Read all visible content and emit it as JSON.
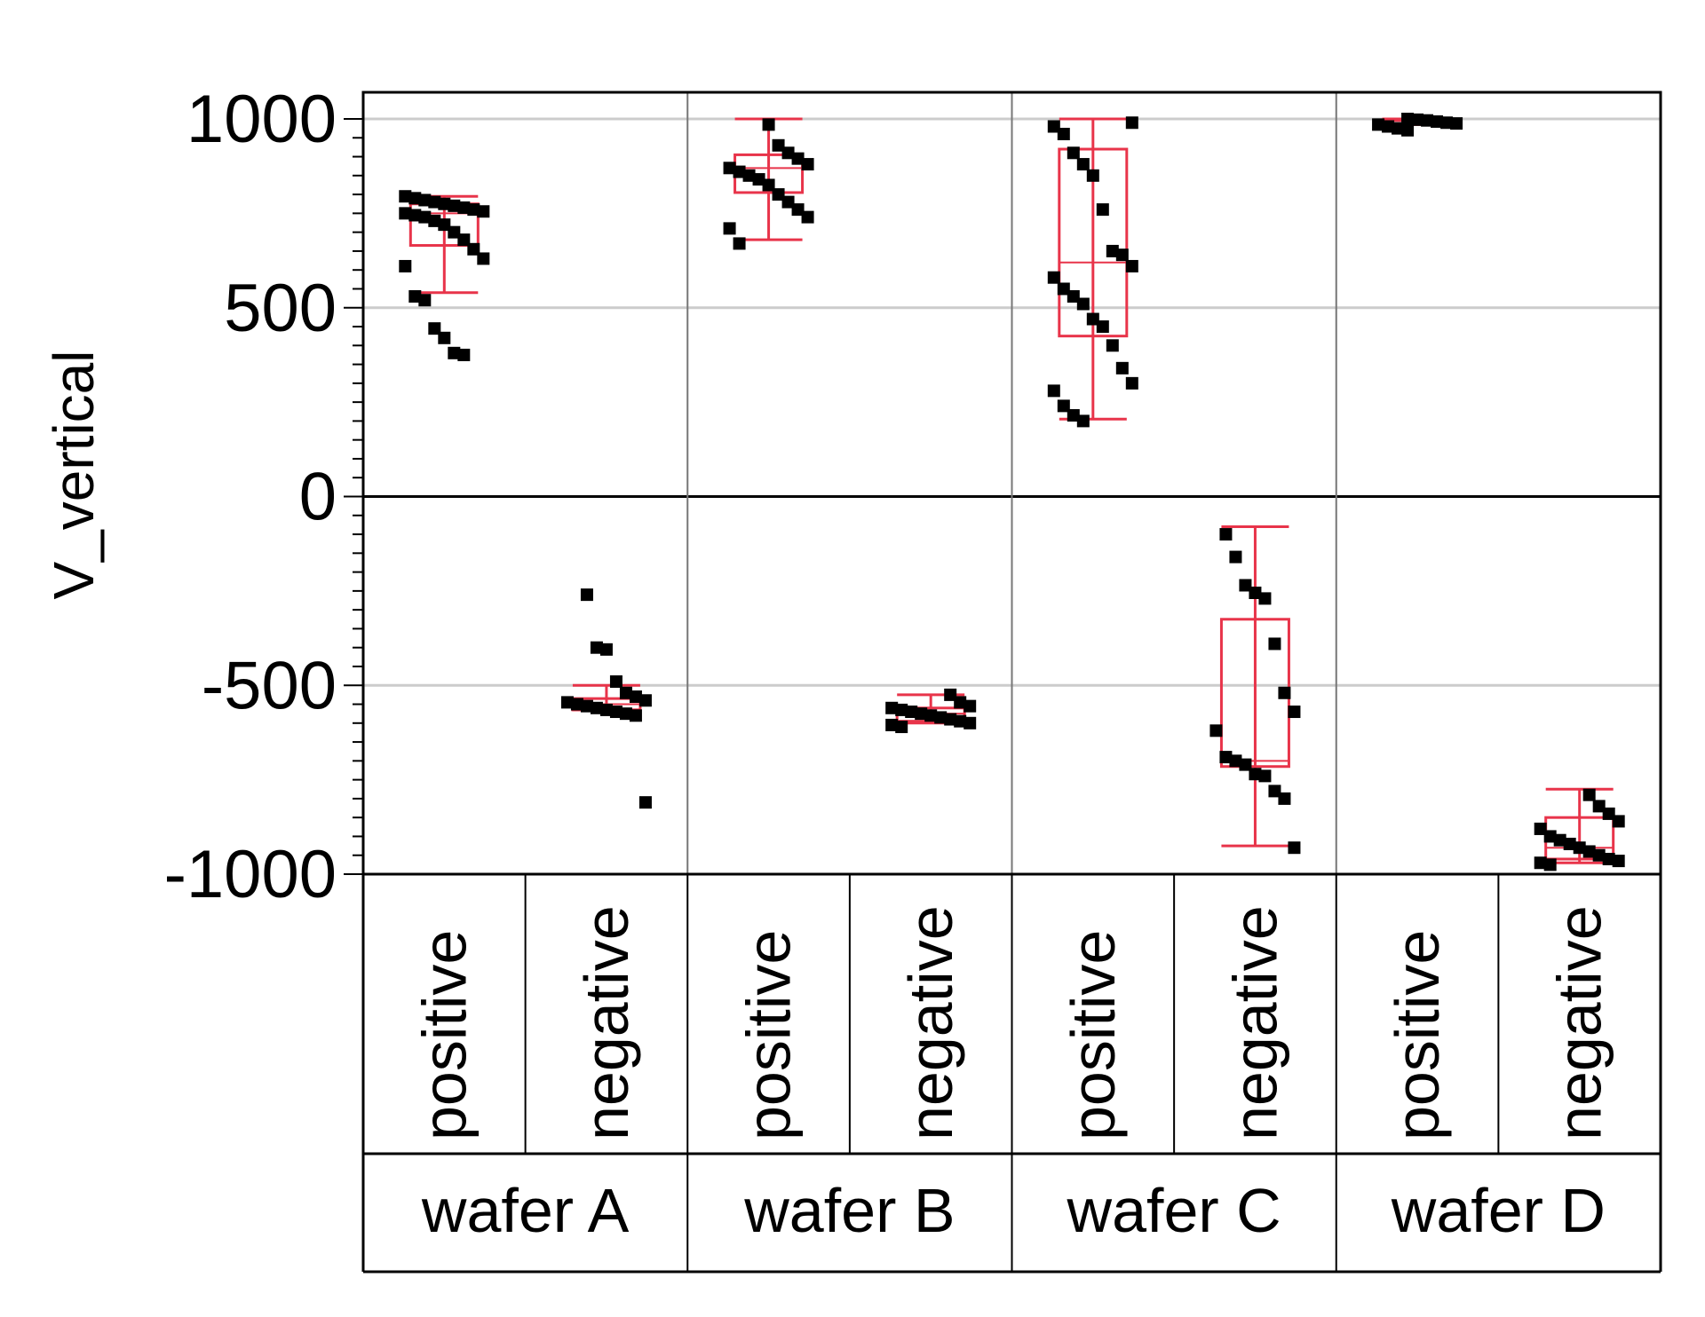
{
  "chart_data": {
    "type": "box",
    "ylabel": "V_vertical",
    "ylim": [
      -1000,
      1000
    ],
    "yticks": [
      1000,
      500,
      0,
      -500,
      -1000
    ],
    "grid": true,
    "groups": [
      "wafer A",
      "wafer B",
      "wafer C",
      "wafer D"
    ],
    "categories": [
      "positive",
      "negative"
    ],
    "colors": {
      "box": "#e8344a",
      "point": "#000000",
      "grid": "#cccccc",
      "frame": "#000000"
    },
    "boxes": [
      {
        "group": "wafer A",
        "category": "positive",
        "whisker_low": 540,
        "q1": 665,
        "median": 750,
        "q3": 775,
        "whisker_high": 795,
        "points": [
          795,
          790,
          785,
          780,
          775,
          770,
          765,
          760,
          755,
          750,
          745,
          740,
          730,
          720,
          700,
          680,
          655,
          630,
          610,
          530,
          520,
          445,
          420,
          380,
          375
        ]
      },
      {
        "group": "wafer A",
        "category": "negative",
        "whisker_low": -565,
        "q1": -565,
        "median": -550,
        "q3": -535,
        "whisker_high": -500,
        "points": [
          -260,
          -400,
          -405,
          -490,
          -520,
          -530,
          -540,
          -545,
          -550,
          -555,
          -560,
          -565,
          -570,
          -575,
          -580,
          -810
        ]
      },
      {
        "group": "wafer B",
        "category": "positive",
        "whisker_low": 680,
        "q1": 805,
        "median": 870,
        "q3": 905,
        "whisker_high": 1000,
        "points": [
          985,
          930,
          910,
          895,
          880,
          870,
          860,
          850,
          840,
          825,
          800,
          780,
          760,
          740,
          710,
          670
        ]
      },
      {
        "group": "wafer B",
        "category": "negative",
        "whisker_low": -600,
        "q1": -595,
        "median": -575,
        "q3": -560,
        "whisker_high": -525,
        "points": [
          -525,
          -545,
          -555,
          -560,
          -565,
          -570,
          -575,
          -580,
          -585,
          -590,
          -595,
          -600,
          -605,
          -610
        ]
      },
      {
        "group": "wafer C",
        "category": "positive",
        "whisker_low": 205,
        "q1": 425,
        "median": 620,
        "q3": 920,
        "whisker_high": 1000,
        "points": [
          990,
          980,
          960,
          910,
          880,
          850,
          760,
          650,
          640,
          610,
          580,
          550,
          530,
          510,
          470,
          450,
          400,
          340,
          300,
          280,
          240,
          215,
          200
        ]
      },
      {
        "group": "wafer C",
        "category": "negative",
        "whisker_low": -925,
        "q1": -715,
        "median": -700,
        "q3": -325,
        "whisker_high": -80,
        "points": [
          -100,
          -160,
          -235,
          -255,
          -270,
          -390,
          -520,
          -570,
          -620,
          -690,
          -700,
          -710,
          -735,
          -740,
          -780,
          -800,
          -930
        ]
      },
      {
        "group": "wafer D",
        "category": "positive",
        "whisker_low": 985,
        "q1": 988,
        "median": 995,
        "q3": 1000,
        "whisker_high": 1000,
        "points": [
          1000,
          998,
          996,
          993,
          990,
          988,
          985,
          980,
          975,
          970
        ]
      },
      {
        "group": "wafer D",
        "category": "negative",
        "whisker_low": -970,
        "q1": -960,
        "median": -930,
        "q3": -850,
        "whisker_high": -775,
        "points": [
          -790,
          -820,
          -840,
          -860,
          -880,
          -900,
          -910,
          -920,
          -930,
          -940,
          -950,
          -960,
          -965,
          -970,
          -975
        ]
      }
    ]
  }
}
